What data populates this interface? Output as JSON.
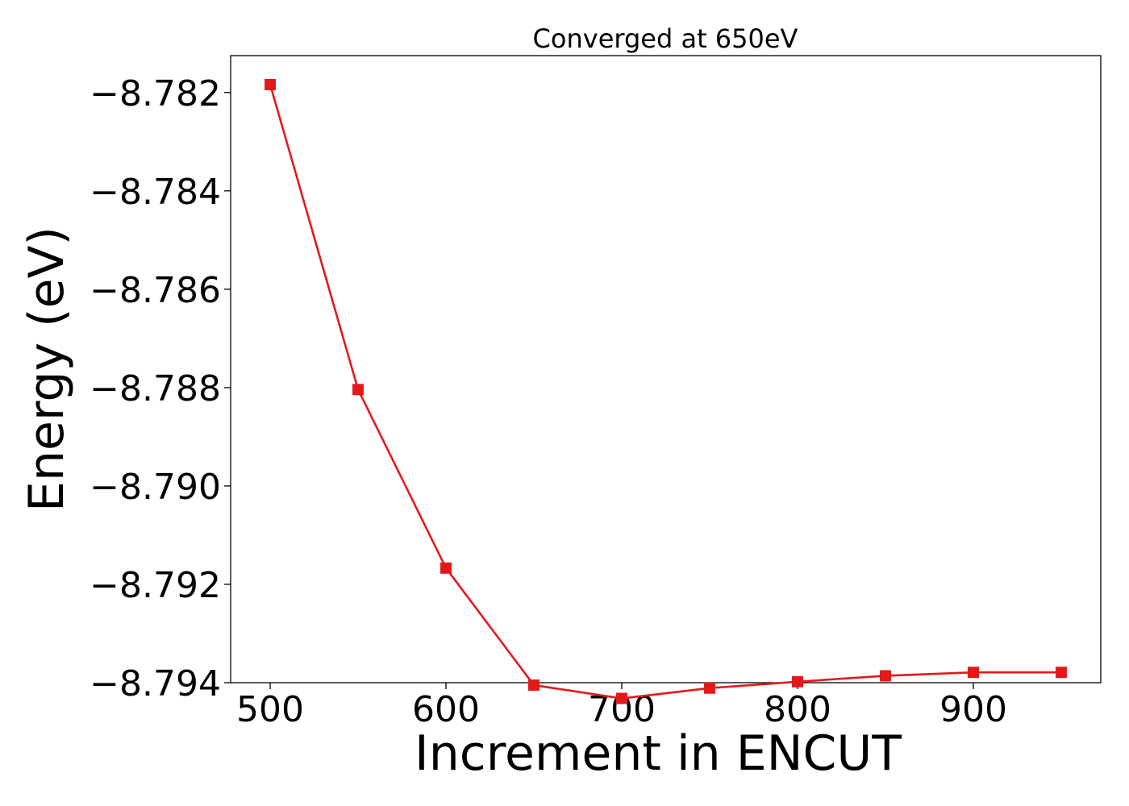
{
  "chart_data": {
    "type": "line",
    "title": "Converged at 650eV",
    "xlabel": "Increment in ENCUT",
    "ylabel": "Energy (eV)",
    "xlim": [
      477.5,
      972.5
    ],
    "ylim": [
      -8.794,
      -8.78125
    ],
    "x_ticks": [
      500,
      600,
      700,
      800,
      900
    ],
    "x_tick_labels": [
      "500",
      "600",
      "700",
      "800",
      "900"
    ],
    "y_ticks": [
      -8.782,
      -8.784,
      -8.786,
      -8.788,
      -8.79,
      -8.792,
      -8.794
    ],
    "y_tick_labels": [
      "−8.782",
      "−8.784",
      "−8.786",
      "−8.788",
      "−8.790",
      "−8.792",
      "−8.794"
    ],
    "grid": false,
    "legend": "none",
    "series": [
      {
        "color": "#e31a1c",
        "marker": "square",
        "x": [
          500,
          550,
          600,
          650,
          700,
          750,
          800,
          850,
          900,
          950
        ],
        "y": [
          -8.78184,
          -8.78804,
          -8.79167,
          -8.79405,
          -8.79432,
          -8.79411,
          -8.79398,
          -8.79386,
          -8.79379,
          -8.79379
        ]
      }
    ]
  }
}
